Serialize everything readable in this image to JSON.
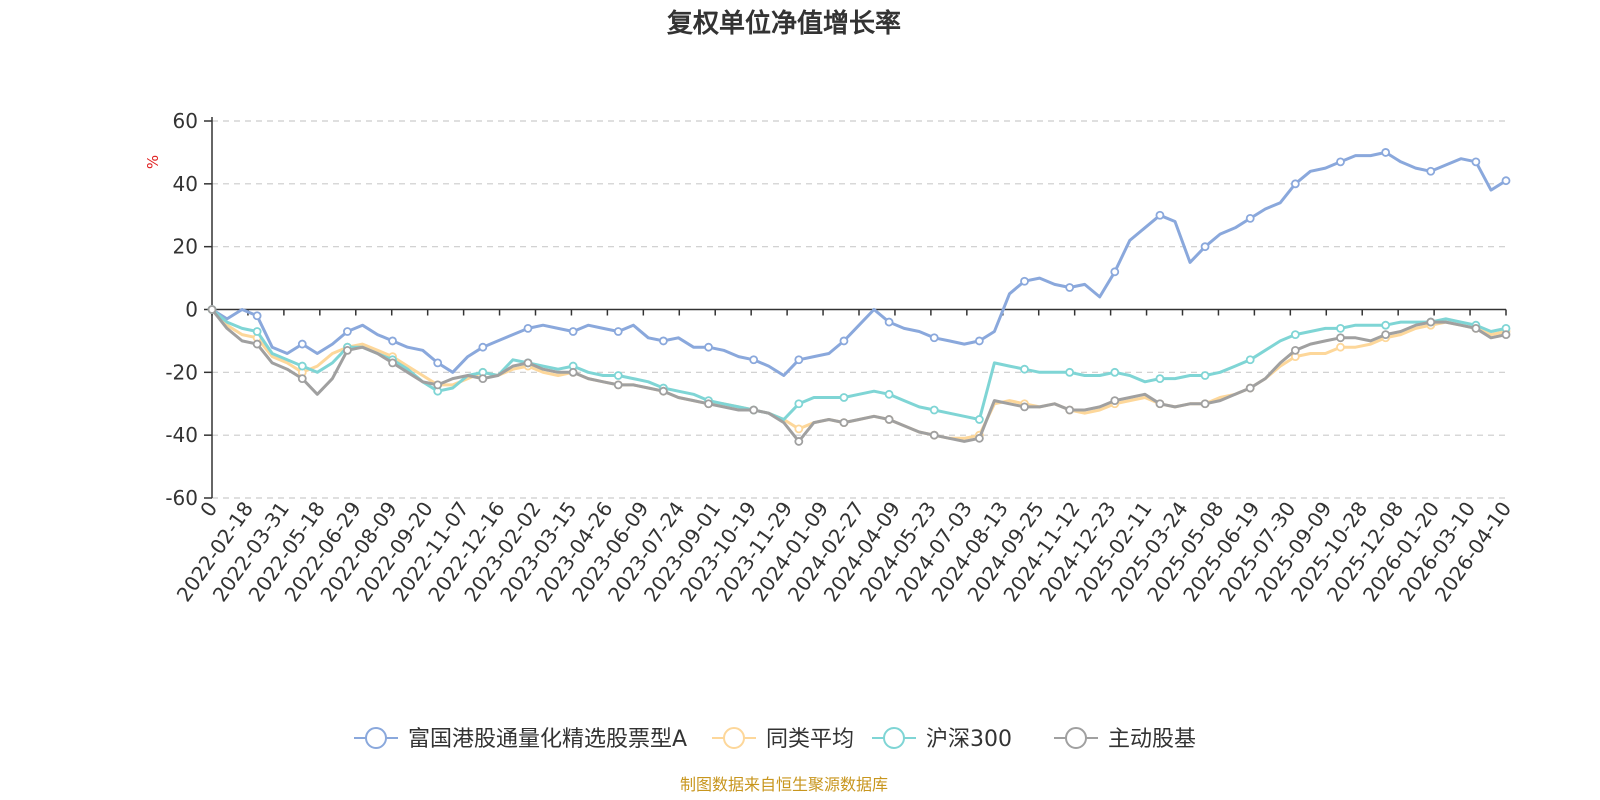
{
  "chart_data": {
    "type": "line",
    "title": "复权单位净值增长率",
    "ylabel": "%",
    "ylim": [
      -60,
      60
    ],
    "yticks": [
      60,
      40,
      20,
      0,
      -20,
      -40,
      -60
    ],
    "grid": true,
    "legend_position": "bottom",
    "x_start_label": "0",
    "x_tick_labels": [
      "0",
      "2022-02-18",
      "2022-03-31",
      "2022-05-18",
      "2022-06-29",
      "2022-08-09",
      "2022-09-20",
      "2022-11-07",
      "2022-12-16",
      "2023-02-02",
      "2023-03-15",
      "2023-04-26",
      "2023-06-09",
      "2023-07-24",
      "2023-09-01",
      "2023-10-19",
      "2023-11-29",
      "2024-01-09",
      "2024-02-27",
      "2024-04-09",
      "2024-05-23",
      "2024-07-03",
      "2024-08-13",
      "2024-09-25",
      "2024-11-12",
      "2024-12-23",
      "2025-02-11",
      "2025-03-24",
      "2025-05-08",
      "2025-06-19",
      "2025-07-30",
      "2025-09-09",
      "2025-10-28",
      "2025-12-08",
      "2026-01-20",
      "2026-03-10",
      "2026-04-10"
    ],
    "series": [
      {
        "name": "富国港股通量化精选股票型A",
        "color": "#8aa8dc",
        "values": [
          0,
          -3,
          0,
          -2,
          -12,
          -14,
          -11,
          -14,
          -11,
          -7,
          -5,
          -8,
          -10,
          -12,
          -13,
          -17,
          -20,
          -15,
          -12,
          -10,
          -8,
          -6,
          -5,
          -6,
          -7,
          -5,
          -6,
          -7,
          -5,
          -9,
          -10,
          -9,
          -12,
          -12,
          -13,
          -15,
          -16,
          -18,
          -21,
          -16,
          -15,
          -14,
          -10,
          -5,
          0,
          -4,
          -6,
          -7,
          -9,
          -10,
          -11,
          -10,
          -7,
          5,
          9,
          10,
          8,
          7,
          8,
          4,
          12,
          22,
          26,
          30,
          28,
          15,
          20,
          24,
          26,
          29,
          32,
          34,
          40,
          44,
          45,
          47,
          49,
          49,
          50,
          47,
          45,
          44,
          46,
          48,
          47,
          38,
          41
        ]
      },
      {
        "name": "同类平均",
        "color": "#fdd79a",
        "values": [
          0,
          -5,
          -8,
          -9,
          -15,
          -17,
          -20,
          -18,
          -14,
          -12,
          -11,
          -13,
          -15,
          -18,
          -21,
          -24,
          -24,
          -22,
          -20,
          -21,
          -19,
          -18,
          -20,
          -21,
          -20,
          -22,
          -23,
          -24,
          -24,
          -25,
          -26,
          -28,
          -29,
          -30,
          -30,
          -31,
          -32,
          -33,
          -35,
          -38,
          -36,
          -35,
          -36,
          -35,
          -34,
          -35,
          -37,
          -39,
          -40,
          -41,
          -41,
          -40,
          -30,
          -29,
          -30,
          -31,
          -30,
          -32,
          -33,
          -32,
          -30,
          -29,
          -28,
          -30,
          -31,
          -30,
          -30,
          -28,
          -27,
          -25,
          -22,
          -18,
          -15,
          -14,
          -14,
          -12,
          -12,
          -11,
          -9,
          -8,
          -6,
          -5,
          -4,
          -5,
          -6,
          -8,
          -7
        ]
      },
      {
        "name": "沪深300",
        "color": "#7fd5d5",
        "values": [
          0,
          -4,
          -6,
          -7,
          -14,
          -16,
          -18,
          -20,
          -17,
          -12,
          -12,
          -14,
          -16,
          -19,
          -23,
          -26,
          -25,
          -21,
          -20,
          -21,
          -16,
          -17,
          -18,
          -19,
          -18,
          -20,
          -21,
          -21,
          -22,
          -23,
          -25,
          -26,
          -27,
          -29,
          -30,
          -31,
          -32,
          -33,
          -35,
          -30,
          -28,
          -28,
          -28,
          -27,
          -26,
          -27,
          -29,
          -31,
          -32,
          -33,
          -34,
          -35,
          -17,
          -18,
          -19,
          -20,
          -20,
          -20,
          -21,
          -21,
          -20,
          -21,
          -23,
          -22,
          -22,
          -21,
          -21,
          -20,
          -18,
          -16,
          -13,
          -10,
          -8,
          -7,
          -6,
          -6,
          -5,
          -5,
          -5,
          -4,
          -4,
          -4,
          -3,
          -4,
          -5,
          -7,
          -6
        ]
      },
      {
        "name": "主动股基",
        "color": "#a0a0a0",
        "values": [
          0,
          -6,
          -10,
          -11,
          -17,
          -19,
          -22,
          -27,
          -22,
          -13,
          -12,
          -14,
          -17,
          -20,
          -23,
          -24,
          -22,
          -21,
          -22,
          -21,
          -18,
          -17,
          -19,
          -20,
          -20,
          -22,
          -23,
          -24,
          -24,
          -25,
          -26,
          -28,
          -29,
          -30,
          -31,
          -32,
          -32,
          -33,
          -36,
          -42,
          -36,
          -35,
          -36,
          -35,
          -34,
          -35,
          -37,
          -39,
          -40,
          -41,
          -42,
          -41,
          -29,
          -30,
          -31,
          -31,
          -30,
          -32,
          -32,
          -31,
          -29,
          -28,
          -27,
          -30,
          -31,
          -30,
          -30,
          -29,
          -27,
          -25,
          -22,
          -17,
          -13,
          -11,
          -10,
          -9,
          -9,
          -10,
          -8,
          -7,
          -5,
          -4,
          -4,
          -5,
          -6,
          -9,
          -8
        ]
      }
    ]
  },
  "source_note": "制图数据来自恒生聚源数据库"
}
